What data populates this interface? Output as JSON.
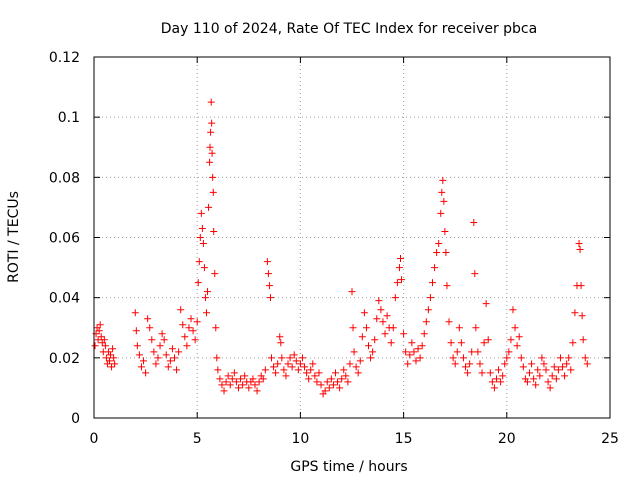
{
  "chart_data": {
    "type": "scatter",
    "title": "Day 110 of 2024, Rate Of TEC Index for receiver pbca",
    "xlabel": "GPS time / hours",
    "ylabel": "ROTI / TECUs",
    "xlim": [
      0,
      25
    ],
    "ylim": [
      0,
      0.12
    ],
    "xticks": [
      0,
      5,
      10,
      15,
      20,
      25
    ],
    "xtick_labels": [
      "0",
      "5",
      "10",
      "15",
      "20",
      "25"
    ],
    "yticks": [
      0,
      0.02,
      0.04,
      0.06,
      0.08,
      0.1,
      0.12
    ],
    "ytick_labels": [
      "0",
      "0.02",
      "0.04",
      "0.06",
      "0.08",
      "0.1",
      "0.12"
    ],
    "grid": true,
    "marker": "plus",
    "marker_color": "#ff0000",
    "series": [
      {
        "name": "ROTI",
        "points": [
          [
            0.05,
            0.024
          ],
          [
            0.1,
            0.028
          ],
          [
            0.15,
            0.03
          ],
          [
            0.2,
            0.026
          ],
          [
            0.25,
            0.029
          ],
          [
            0.3,
            0.031
          ],
          [
            0.35,
            0.027
          ],
          [
            0.4,
            0.025
          ],
          [
            0.45,
            0.022
          ],
          [
            0.5,
            0.026
          ],
          [
            0.55,
            0.024
          ],
          [
            0.6,
            0.02
          ],
          [
            0.65,
            0.018
          ],
          [
            0.7,
            0.022
          ],
          [
            0.75,
            0.019
          ],
          [
            0.8,
            0.021
          ],
          [
            0.85,
            0.017
          ],
          [
            0.9,
            0.023
          ],
          [
            0.95,
            0.02
          ],
          [
            1.0,
            0.018
          ],
          [
            2.0,
            0.035
          ],
          [
            2.05,
            0.029
          ],
          [
            2.1,
            0.024
          ],
          [
            2.2,
            0.021
          ],
          [
            2.3,
            0.017
          ],
          [
            2.4,
            0.019
          ],
          [
            2.5,
            0.015
          ],
          [
            2.6,
            0.033
          ],
          [
            2.7,
            0.03
          ],
          [
            2.8,
            0.026
          ],
          [
            2.9,
            0.022
          ],
          [
            3.0,
            0.018
          ],
          [
            3.1,
            0.02
          ],
          [
            3.2,
            0.024
          ],
          [
            3.3,
            0.028
          ],
          [
            3.4,
            0.026
          ],
          [
            3.5,
            0.021
          ],
          [
            3.6,
            0.017
          ],
          [
            3.7,
            0.019
          ],
          [
            3.8,
            0.023
          ],
          [
            3.9,
            0.02
          ],
          [
            4.0,
            0.016
          ],
          [
            4.1,
            0.022
          ],
          [
            4.2,
            0.036
          ],
          [
            4.3,
            0.031
          ],
          [
            4.4,
            0.027
          ],
          [
            4.5,
            0.024
          ],
          [
            4.6,
            0.03
          ],
          [
            4.7,
            0.033
          ],
          [
            4.8,
            0.029
          ],
          [
            4.9,
            0.026
          ],
          [
            5.0,
            0.032
          ],
          [
            5.05,
            0.045
          ],
          [
            5.1,
            0.052
          ],
          [
            5.15,
            0.06
          ],
          [
            5.2,
            0.068
          ],
          [
            5.25,
            0.063
          ],
          [
            5.3,
            0.058
          ],
          [
            5.35,
            0.05
          ],
          [
            5.4,
            0.04
          ],
          [
            5.45,
            0.035
          ],
          [
            5.5,
            0.042
          ],
          [
            5.55,
            0.07
          ],
          [
            5.6,
            0.085
          ],
          [
            5.62,
            0.09
          ],
          [
            5.65,
            0.095
          ],
          [
            5.68,
            0.105
          ],
          [
            5.7,
            0.098
          ],
          [
            5.72,
            0.088
          ],
          [
            5.75,
            0.08
          ],
          [
            5.78,
            0.075
          ],
          [
            5.8,
            0.062
          ],
          [
            5.85,
            0.048
          ],
          [
            5.9,
            0.03
          ],
          [
            5.95,
            0.02
          ],
          [
            6.0,
            0.016
          ],
          [
            6.1,
            0.013
          ],
          [
            6.2,
            0.011
          ],
          [
            6.3,
            0.009
          ],
          [
            6.4,
            0.012
          ],
          [
            6.5,
            0.014
          ],
          [
            6.6,
            0.011
          ],
          [
            6.7,
            0.013
          ],
          [
            6.8,
            0.015
          ],
          [
            6.9,
            0.012
          ],
          [
            7.0,
            0.01
          ],
          [
            7.1,
            0.013
          ],
          [
            7.2,
            0.011
          ],
          [
            7.3,
            0.014
          ],
          [
            7.4,
            0.012
          ],
          [
            7.5,
            0.01
          ],
          [
            7.6,
            0.012
          ],
          [
            7.7,
            0.013
          ],
          [
            7.8,
            0.011
          ],
          [
            7.9,
            0.009
          ],
          [
            8.0,
            0.012
          ],
          [
            8.1,
            0.014
          ],
          [
            8.2,
            0.013
          ],
          [
            8.3,
            0.016
          ],
          [
            8.4,
            0.052
          ],
          [
            8.45,
            0.048
          ],
          [
            8.5,
            0.044
          ],
          [
            8.55,
            0.04
          ],
          [
            8.6,
            0.02
          ],
          [
            8.7,
            0.017
          ],
          [
            8.8,
            0.015
          ],
          [
            8.9,
            0.018
          ],
          [
            9.0,
            0.027
          ],
          [
            9.05,
            0.025
          ],
          [
            9.1,
            0.02
          ],
          [
            9.2,
            0.016
          ],
          [
            9.3,
            0.014
          ],
          [
            9.4,
            0.018
          ],
          [
            9.5,
            0.02
          ],
          [
            9.6,
            0.017
          ],
          [
            9.7,
            0.021
          ],
          [
            9.8,
            0.019
          ],
          [
            9.9,
            0.016
          ],
          [
            10.0,
            0.018
          ],
          [
            10.1,
            0.02
          ],
          [
            10.2,
            0.017
          ],
          [
            10.3,
            0.015
          ],
          [
            10.4,
            0.013
          ],
          [
            10.5,
            0.016
          ],
          [
            10.6,
            0.018
          ],
          [
            10.7,
            0.014
          ],
          [
            10.8,
            0.012
          ],
          [
            10.9,
            0.015
          ],
          [
            11.0,
            0.011
          ],
          [
            11.1,
            0.008
          ],
          [
            11.2,
            0.009
          ],
          [
            11.3,
            0.012
          ],
          [
            11.4,
            0.01
          ],
          [
            11.5,
            0.013
          ],
          [
            11.6,
            0.011
          ],
          [
            11.7,
            0.015
          ],
          [
            11.8,
            0.012
          ],
          [
            11.9,
            0.01
          ],
          [
            12.0,
            0.013
          ],
          [
            12.1,
            0.016
          ],
          [
            12.2,
            0.014
          ],
          [
            12.3,
            0.012
          ],
          [
            12.4,
            0.018
          ],
          [
            12.5,
            0.042
          ],
          [
            12.55,
            0.03
          ],
          [
            12.6,
            0.022
          ],
          [
            12.7,
            0.017
          ],
          [
            12.8,
            0.015
          ],
          [
            12.9,
            0.019
          ],
          [
            13.0,
            0.027
          ],
          [
            13.1,
            0.035
          ],
          [
            13.2,
            0.03
          ],
          [
            13.3,
            0.024
          ],
          [
            13.4,
            0.02
          ],
          [
            13.5,
            0.022
          ],
          [
            13.6,
            0.026
          ],
          [
            13.7,
            0.033
          ],
          [
            13.8,
            0.039
          ],
          [
            13.9,
            0.036
          ],
          [
            14.0,
            0.032
          ],
          [
            14.1,
            0.028
          ],
          [
            14.2,
            0.034
          ],
          [
            14.3,
            0.03
          ],
          [
            14.4,
            0.025
          ],
          [
            14.5,
            0.03
          ],
          [
            14.6,
            0.04
          ],
          [
            14.7,
            0.045
          ],
          [
            14.8,
            0.05
          ],
          [
            14.85,
            0.053
          ],
          [
            14.9,
            0.046
          ],
          [
            15.0,
            0.028
          ],
          [
            15.1,
            0.022
          ],
          [
            15.2,
            0.018
          ],
          [
            15.3,
            0.021
          ],
          [
            15.4,
            0.025
          ],
          [
            15.5,
            0.022
          ],
          [
            15.6,
            0.019
          ],
          [
            15.7,
            0.023
          ],
          [
            15.8,
            0.02
          ],
          [
            15.9,
            0.024
          ],
          [
            16.0,
            0.028
          ],
          [
            16.1,
            0.032
          ],
          [
            16.2,
            0.036
          ],
          [
            16.3,
            0.04
          ],
          [
            16.4,
            0.045
          ],
          [
            16.5,
            0.05
          ],
          [
            16.6,
            0.055
          ],
          [
            16.7,
            0.058
          ],
          [
            16.8,
            0.068
          ],
          [
            16.85,
            0.075
          ],
          [
            16.9,
            0.079
          ],
          [
            16.95,
            0.072
          ],
          [
            17.0,
            0.062
          ],
          [
            17.05,
            0.055
          ],
          [
            17.1,
            0.044
          ],
          [
            17.2,
            0.032
          ],
          [
            17.3,
            0.025
          ],
          [
            17.4,
            0.02
          ],
          [
            17.5,
            0.018
          ],
          [
            17.6,
            0.022
          ],
          [
            17.7,
            0.03
          ],
          [
            17.8,
            0.025
          ],
          [
            17.9,
            0.02
          ],
          [
            18.0,
            0.017
          ],
          [
            18.1,
            0.015
          ],
          [
            18.2,
            0.018
          ],
          [
            18.3,
            0.022
          ],
          [
            18.4,
            0.065
          ],
          [
            18.45,
            0.048
          ],
          [
            18.5,
            0.03
          ],
          [
            18.6,
            0.022
          ],
          [
            18.7,
            0.018
          ],
          [
            18.8,
            0.015
          ],
          [
            18.9,
            0.025
          ],
          [
            19.0,
            0.038
          ],
          [
            19.1,
            0.026
          ],
          [
            19.2,
            0.015
          ],
          [
            19.3,
            0.012
          ],
          [
            19.4,
            0.01
          ],
          [
            19.5,
            0.013
          ],
          [
            19.6,
            0.016
          ],
          [
            19.7,
            0.012
          ],
          [
            19.8,
            0.014
          ],
          [
            19.9,
            0.018
          ],
          [
            20.0,
            0.02
          ],
          [
            20.1,
            0.022
          ],
          [
            20.2,
            0.026
          ],
          [
            20.3,
            0.036
          ],
          [
            20.4,
            0.03
          ],
          [
            20.5,
            0.024
          ],
          [
            20.6,
            0.027
          ],
          [
            20.7,
            0.02
          ],
          [
            20.8,
            0.017
          ],
          [
            20.9,
            0.013
          ],
          [
            21.0,
            0.012
          ],
          [
            21.1,
            0.015
          ],
          [
            21.2,
            0.018
          ],
          [
            21.3,
            0.013
          ],
          [
            21.4,
            0.011
          ],
          [
            21.5,
            0.016
          ],
          [
            21.6,
            0.014
          ],
          [
            21.7,
            0.02
          ],
          [
            21.8,
            0.018
          ],
          [
            21.9,
            0.016
          ],
          [
            22.0,
            0.012
          ],
          [
            22.1,
            0.01
          ],
          [
            22.2,
            0.014
          ],
          [
            22.3,
            0.017
          ],
          [
            22.4,
            0.013
          ],
          [
            22.5,
            0.016
          ],
          [
            22.6,
            0.02
          ],
          [
            22.7,
            0.017
          ],
          [
            22.8,
            0.014
          ],
          [
            22.9,
            0.018
          ],
          [
            23.0,
            0.02
          ],
          [
            23.1,
            0.016
          ],
          [
            23.2,
            0.025
          ],
          [
            23.3,
            0.035
          ],
          [
            23.4,
            0.044
          ],
          [
            23.5,
            0.058
          ],
          [
            23.55,
            0.056
          ],
          [
            23.6,
            0.044
          ],
          [
            23.65,
            0.034
          ],
          [
            23.7,
            0.026
          ],
          [
            23.8,
            0.02
          ],
          [
            23.9,
            0.018
          ]
        ]
      }
    ]
  }
}
